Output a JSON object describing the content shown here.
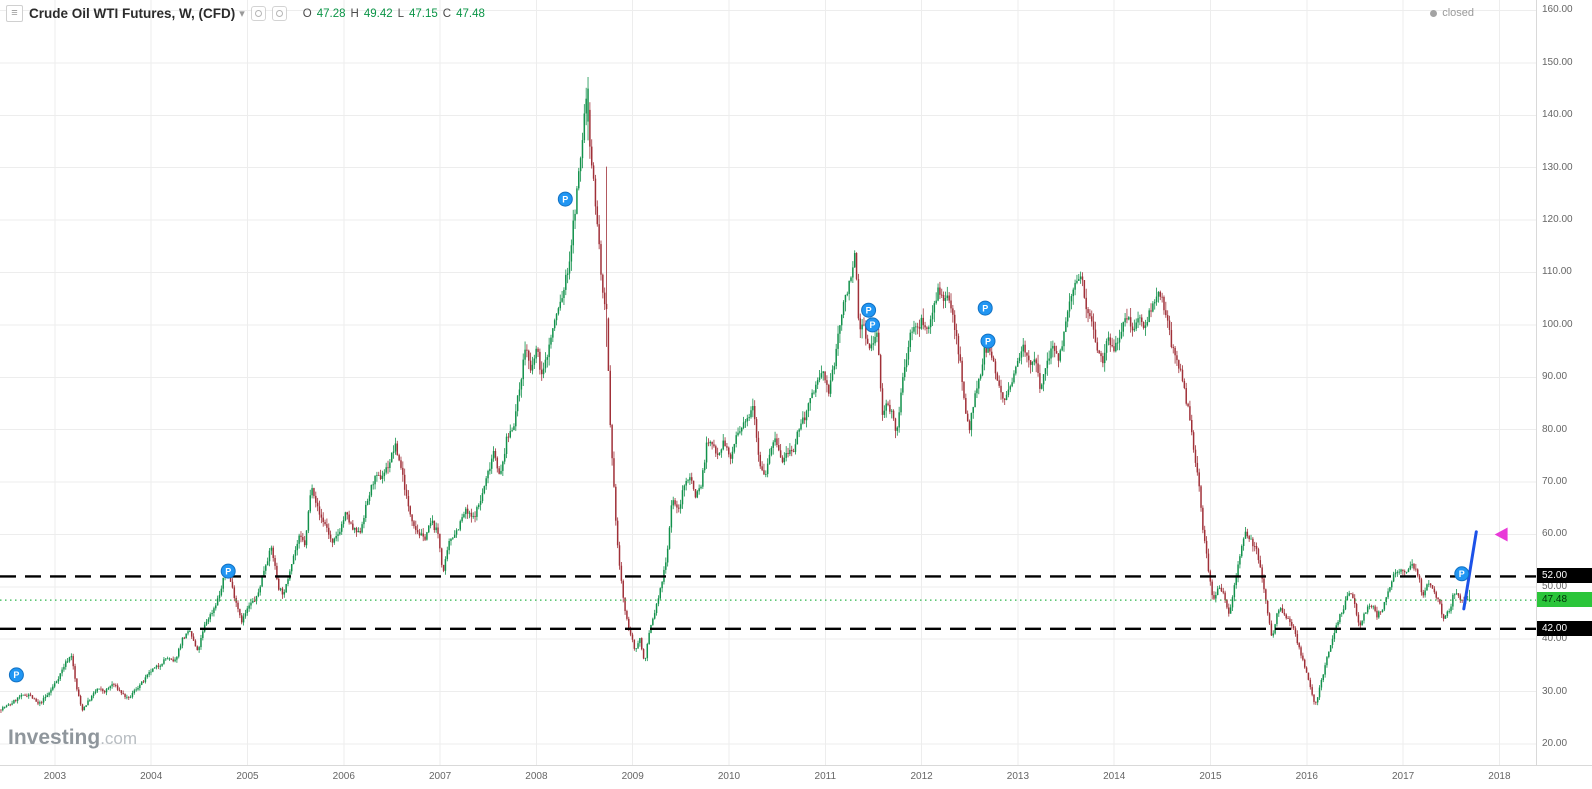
{
  "header": {
    "menu_icon": "≡",
    "title": "Crude Oil WTI Futures, W, (CFD)",
    "caret": "▾",
    "ohlc": {
      "o_label": "O",
      "o_value": "47.28",
      "h_label": "H",
      "h_value": "49.42",
      "l_label": "L",
      "l_value": "47.15",
      "c_label": "C",
      "c_value": "47.48"
    },
    "status_label": "closed"
  },
  "watermark": {
    "brand": "Investing",
    "suffix": ".com"
  },
  "price_labels": {
    "resistance": "52.00",
    "support": "42.00",
    "last_price": "47.48"
  },
  "chart_data": {
    "type": "candlestick",
    "title": "Crude Oil WTI Futures, W, (CFD)",
    "timeframe": "W",
    "x_axis_ticks": [
      "2003",
      "2004",
      "2005",
      "2006",
      "2007",
      "2008",
      "2009",
      "2010",
      "2011",
      "2012",
      "2013",
      "2014",
      "2015",
      "2016",
      "2017",
      "2018"
    ],
    "y_axis_ticks": [
      "160.00",
      "150.00",
      "140.00",
      "130.00",
      "120.00",
      "110.00",
      "100.00",
      "90.00",
      "80.00",
      "70.00",
      "60.00",
      "50.00",
      "40.00",
      "30.00",
      "20.00"
    ],
    "x_domain": [
      2002.43,
      2018.38
    ],
    "y_domain": [
      16,
      162
    ],
    "series_start": 2002.44,
    "series_end": 2017.7,
    "seed": 7,
    "colors": {
      "up": "#12914b",
      "down": "#a03038",
      "grid": "#ededed",
      "level": "#000000",
      "current": "#2bb54a",
      "trend": "#1c52e8",
      "marker": "#2196f3",
      "arrow": "#e93ad8"
    },
    "levels": [
      {
        "value": 52.0,
        "label": "52.00"
      },
      {
        "value": 42.0,
        "label": "42.00"
      }
    ],
    "current_price": {
      "value": 47.48,
      "label": "47.48"
    },
    "last_candle": {
      "open": 47.28,
      "high": 49.42,
      "low": 47.15,
      "close": 47.48
    },
    "anchors": [
      [
        2002.43,
        26.5
      ],
      [
        2002.55,
        27.5
      ],
      [
        2002.65,
        29
      ],
      [
        2002.75,
        29.5
      ],
      [
        2002.85,
        27.5
      ],
      [
        2002.95,
        29.5
      ],
      [
        2003.05,
        32.5
      ],
      [
        2003.13,
        35.5
      ],
      [
        2003.19,
        37
      ],
      [
        2003.24,
        31
      ],
      [
        2003.3,
        26.5
      ],
      [
        2003.38,
        28.5
      ],
      [
        2003.46,
        30.5
      ],
      [
        2003.54,
        30
      ],
      [
        2003.62,
        31.5
      ],
      [
        2003.7,
        30
      ],
      [
        2003.78,
        28.5
      ],
      [
        2003.86,
        30.5
      ],
      [
        2003.94,
        32
      ],
      [
        2004.02,
        34
      ],
      [
        2004.1,
        35
      ],
      [
        2004.18,
        36.5
      ],
      [
        2004.26,
        35.5
      ],
      [
        2004.34,
        40
      ],
      [
        2004.42,
        41.5
      ],
      [
        2004.5,
        37.5
      ],
      [
        2004.58,
        43
      ],
      [
        2004.66,
        45.5
      ],
      [
        2004.74,
        49
      ],
      [
        2004.8,
        54
      ],
      [
        2004.88,
        48.5
      ],
      [
        2004.96,
        43.5
      ],
      [
        2005.04,
        46.5
      ],
      [
        2005.12,
        48
      ],
      [
        2005.2,
        54
      ],
      [
        2005.27,
        57.5
      ],
      [
        2005.34,
        50
      ],
      [
        2005.4,
        48.5
      ],
      [
        2005.48,
        55
      ],
      [
        2005.56,
        59.5
      ],
      [
        2005.62,
        58
      ],
      [
        2005.66,
        66
      ],
      [
        2005.69,
        69.5
      ],
      [
        2005.76,
        64
      ],
      [
        2005.84,
        61.5
      ],
      [
        2005.9,
        58
      ],
      [
        2005.97,
        60.5
      ],
      [
        2006.04,
        64
      ],
      [
        2006.11,
        61
      ],
      [
        2006.18,
        60
      ],
      [
        2006.26,
        66
      ],
      [
        2006.33,
        70.5
      ],
      [
        2006.41,
        71
      ],
      [
        2006.49,
        73.5
      ],
      [
        2006.55,
        77
      ],
      [
        2006.62,
        72.5
      ],
      [
        2006.69,
        65
      ],
      [
        2006.77,
        61
      ],
      [
        2006.85,
        59
      ],
      [
        2006.93,
        62.5
      ],
      [
        2007.0,
        60
      ],
      [
        2007.05,
        52.5
      ],
      [
        2007.12,
        59
      ],
      [
        2007.2,
        61
      ],
      [
        2007.28,
        64.5
      ],
      [
        2007.36,
        63
      ],
      [
        2007.44,
        66.5
      ],
      [
        2007.52,
        72
      ],
      [
        2007.58,
        76.5
      ],
      [
        2007.64,
        70.5
      ],
      [
        2007.71,
        78
      ],
      [
        2007.79,
        81.5
      ],
      [
        2007.86,
        90
      ],
      [
        2007.91,
        96.5
      ],
      [
        2007.96,
        90.5
      ],
      [
        2008.02,
        95.5
      ],
      [
        2008.08,
        90
      ],
      [
        2008.15,
        96
      ],
      [
        2008.22,
        101.5
      ],
      [
        2008.29,
        105.5
      ],
      [
        2008.36,
        112
      ],
      [
        2008.42,
        122
      ],
      [
        2008.48,
        132
      ],
      [
        2008.52,
        140.5
      ],
      [
        2008.545,
        145
      ],
      [
        2008.58,
        133.5
      ],
      [
        2008.63,
        124
      ],
      [
        2008.67,
        115
      ],
      [
        2008.71,
        105.5
      ],
      [
        2008.75,
        100
      ],
      [
        2008.79,
        78
      ],
      [
        2008.83,
        67
      ],
      [
        2008.87,
        56
      ],
      [
        2008.91,
        49.5
      ],
      [
        2008.95,
        44
      ],
      [
        2009.0,
        41
      ],
      [
        2009.04,
        37.5
      ],
      [
        2009.09,
        40.5
      ],
      [
        2009.14,
        35.5
      ],
      [
        2009.2,
        42
      ],
      [
        2009.26,
        46
      ],
      [
        2009.32,
        50.5
      ],
      [
        2009.38,
        57
      ],
      [
        2009.43,
        67.5
      ],
      [
        2009.49,
        64
      ],
      [
        2009.55,
        69
      ],
      [
        2009.61,
        71.5
      ],
      [
        2009.67,
        67.5
      ],
      [
        2009.73,
        69.5
      ],
      [
        2009.79,
        77.5
      ],
      [
        2009.85,
        77
      ],
      [
        2009.91,
        75.5
      ],
      [
        2009.97,
        78
      ],
      [
        2010.03,
        74
      ],
      [
        2010.09,
        78.5
      ],
      [
        2010.15,
        80
      ],
      [
        2010.21,
        82
      ],
      [
        2010.27,
        85.5
      ],
      [
        2010.33,
        74.5
      ],
      [
        2010.39,
        71
      ],
      [
        2010.45,
        76.5
      ],
      [
        2010.51,
        78
      ],
      [
        2010.57,
        73.5
      ],
      [
        2010.63,
        76
      ],
      [
        2010.69,
        75
      ],
      [
        2010.75,
        81
      ],
      [
        2010.81,
        82.5
      ],
      [
        2010.87,
        86
      ],
      [
        2010.93,
        89
      ],
      [
        2011.0,
        91
      ],
      [
        2011.05,
        87
      ],
      [
        2011.11,
        92
      ],
      [
        2011.16,
        99.5
      ],
      [
        2011.22,
        104.5
      ],
      [
        2011.28,
        109.5
      ],
      [
        2011.33,
        113
      ],
      [
        2011.37,
        98.5
      ],
      [
        2011.42,
        100.5
      ],
      [
        2011.47,
        95
      ],
      [
        2011.52,
        96.5
      ],
      [
        2011.56,
        99
      ],
      [
        2011.61,
        82.5
      ],
      [
        2011.66,
        86
      ],
      [
        2011.71,
        83
      ],
      [
        2011.76,
        78.5
      ],
      [
        2011.81,
        88
      ],
      [
        2011.86,
        93.5
      ],
      [
        2011.91,
        99.5
      ],
      [
        2011.97,
        99
      ],
      [
        2012.03,
        101
      ],
      [
        2012.09,
        99
      ],
      [
        2012.14,
        103.5
      ],
      [
        2012.19,
        107
      ],
      [
        2012.25,
        104
      ],
      [
        2012.31,
        105
      ],
      [
        2012.37,
        99
      ],
      [
        2012.43,
        92
      ],
      [
        2012.47,
        83.5
      ],
      [
        2012.51,
        80
      ],
      [
        2012.57,
        86
      ],
      [
        2012.63,
        90
      ],
      [
        2012.67,
        96
      ],
      [
        2012.72,
        95
      ],
      [
        2012.78,
        92
      ],
      [
        2012.84,
        87
      ],
      [
        2012.9,
        86
      ],
      [
        2012.96,
        89
      ],
      [
        2013.02,
        94
      ],
      [
        2013.08,
        96
      ],
      [
        2013.14,
        93
      ],
      [
        2013.2,
        92.5
      ],
      [
        2013.26,
        87.5
      ],
      [
        2013.32,
        93
      ],
      [
        2013.38,
        96
      ],
      [
        2013.44,
        94
      ],
      [
        2013.5,
        98
      ],
      [
        2013.56,
        104.5
      ],
      [
        2013.62,
        107.5
      ],
      [
        2013.68,
        110
      ],
      [
        2013.73,
        103.5
      ],
      [
        2013.79,
        101
      ],
      [
        2013.85,
        95
      ],
      [
        2013.9,
        93.5
      ],
      [
        2013.96,
        98
      ],
      [
        2014.02,
        95
      ],
      [
        2014.08,
        98.5
      ],
      [
        2014.14,
        102.5
      ],
      [
        2014.2,
        99.5
      ],
      [
        2014.26,
        101
      ],
      [
        2014.32,
        100
      ],
      [
        2014.38,
        102
      ],
      [
        2014.44,
        104.5
      ],
      [
        2014.48,
        107
      ],
      [
        2014.54,
        103.5
      ],
      [
        2014.6,
        97.5
      ],
      [
        2014.66,
        93
      ],
      [
        2014.72,
        90
      ],
      [
        2014.78,
        84.5
      ],
      [
        2014.84,
        77
      ],
      [
        2014.9,
        69.5
      ],
      [
        2014.95,
        59.5
      ],
      [
        2015.0,
        53
      ],
      [
        2015.05,
        47
      ],
      [
        2015.1,
        50.5
      ],
      [
        2015.16,
        48.5
      ],
      [
        2015.21,
        44.5
      ],
      [
        2015.27,
        50.5
      ],
      [
        2015.33,
        56.5
      ],
      [
        2015.38,
        60
      ],
      [
        2015.44,
        59
      ],
      [
        2015.5,
        57
      ],
      [
        2015.56,
        51
      ],
      [
        2015.62,
        44.5
      ],
      [
        2015.66,
        40
      ],
      [
        2015.72,
        46
      ],
      [
        2015.78,
        45
      ],
      [
        2015.84,
        43.5
      ],
      [
        2015.9,
        41
      ],
      [
        2015.96,
        37
      ],
      [
        2016.02,
        33.5
      ],
      [
        2016.07,
        29.5
      ],
      [
        2016.11,
        27.5
      ],
      [
        2016.17,
        32
      ],
      [
        2016.23,
        36.5
      ],
      [
        2016.29,
        40
      ],
      [
        2016.35,
        44
      ],
      [
        2016.41,
        46.5
      ],
      [
        2016.45,
        49.5
      ],
      [
        2016.51,
        47
      ],
      [
        2016.57,
        42
      ],
      [
        2016.63,
        45.5
      ],
      [
        2016.69,
        46.5
      ],
      [
        2016.75,
        44.5
      ],
      [
        2016.81,
        46
      ],
      [
        2016.87,
        49.5
      ],
      [
        2016.93,
        52.5
      ],
      [
        2017.0,
        53.5
      ],
      [
        2017.06,
        53
      ],
      [
        2017.12,
        54
      ],
      [
        2017.18,
        52
      ],
      [
        2017.22,
        48
      ],
      [
        2017.28,
        51
      ],
      [
        2017.34,
        49
      ],
      [
        2017.4,
        46.5
      ],
      [
        2017.44,
        44
      ],
      [
        2017.5,
        45.5
      ],
      [
        2017.55,
        49
      ],
      [
        2017.6,
        48
      ],
      [
        2017.65,
        47.5
      ],
      [
        2017.7,
        47.48
      ]
    ],
    "week_overrides": [
      {
        "t": 2008.535,
        "open": 138.8,
        "high": 147.3,
        "low": 135.2,
        "close": 145.1
      },
      {
        "t": 2008.72,
        "open": 104.0,
        "high": 130.2,
        "low": 95.8,
        "close": 103.0
      },
      {
        "t": 2017.695,
        "open": 47.28,
        "high": 49.42,
        "low": 47.15,
        "close": 47.48
      }
    ],
    "markers": [
      {
        "t": 2002.6,
        "price": 33.2,
        "label": "P"
      },
      {
        "t": 2004.8,
        "price": 53.0,
        "label": "P"
      },
      {
        "t": 2008.3,
        "price": 124.0,
        "label": "P"
      },
      {
        "t": 2011.45,
        "price": 102.8,
        "label": "P"
      },
      {
        "t": 2011.49,
        "price": 100.0,
        "label": "P"
      },
      {
        "t": 2012.66,
        "price": 103.2,
        "label": "P"
      },
      {
        "t": 2012.69,
        "price": 96.9,
        "label": "P"
      },
      {
        "t": 2017.61,
        "price": 52.5,
        "label": "P"
      }
    ],
    "trendline": {
      "t1": 2017.63,
      "p1": 45.8,
      "t2": 2017.76,
      "p2": 60.5
    },
    "arrow_marker": {
      "t": 2017.95,
      "price": 60.0
    }
  }
}
